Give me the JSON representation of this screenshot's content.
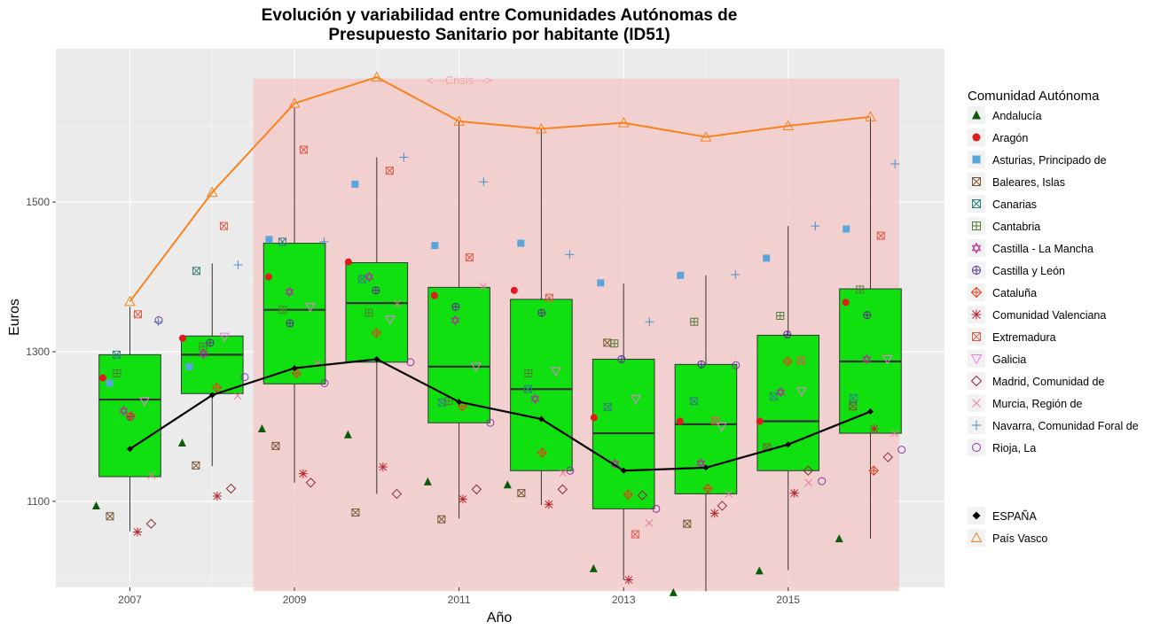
{
  "chart_data": {
    "type": "boxplot",
    "title_line1": "Evolución y variabilidad entre Comunidades Autónomas de",
    "title_line2": "Presupuesto Sanitario por habitante (ID51)",
    "xlabel": "Año",
    "ylabel": "Euros",
    "xlim": [
      2006.1,
      2016.9
    ],
    "ylim": [
      985,
      1705
    ],
    "x_ticks": [
      2007,
      2009,
      2011,
      2013,
      2015
    ],
    "x_tick_labels": [
      "2007",
      "2009",
      "2011",
      "2013",
      "2015"
    ],
    "y_ticks": [
      1100,
      1300,
      1500
    ],
    "y_tick_labels": [
      "1100",
      "1300",
      "1500"
    ],
    "crisis": {
      "label": "<---Crisis--->",
      "x_range": [
        2008.5,
        2016.35
      ],
      "y_range": [
        980,
        1665
      ],
      "color": "#f4c7c7"
    },
    "years": [
      2007,
      2008,
      2009,
      2010,
      2011,
      2012,
      2013,
      2014,
      2015,
      2016
    ],
    "boxes": [
      {
        "year": 2007,
        "q1": 1133,
        "median": 1236,
        "q3": 1296,
        "low": 1060,
        "high": 1360
      },
      {
        "year": 2008,
        "q1": 1244,
        "median": 1296,
        "q3": 1321,
        "low": 1147,
        "high": 1418
      },
      {
        "year": 2009,
        "q1": 1257,
        "median": 1356,
        "q3": 1445,
        "low": 1125,
        "high": 1627
      },
      {
        "year": 2010,
        "q1": 1286,
        "median": 1365,
        "q3": 1419,
        "low": 1110,
        "high": 1560
      },
      {
        "year": 2011,
        "q1": 1205,
        "median": 1280,
        "q3": 1386,
        "low": 1077,
        "high": 1608
      },
      {
        "year": 2012,
        "q1": 1141,
        "median": 1250,
        "q3": 1370,
        "low": 1095,
        "high": 1597
      },
      {
        "year": 2013,
        "q1": 1090,
        "median": 1191,
        "q3": 1290,
        "low": 995,
        "high": 1391
      },
      {
        "year": 2014,
        "q1": 1110,
        "median": 1203,
        "q3": 1283,
        "low": 980,
        "high": 1402
      },
      {
        "year": 2015,
        "q1": 1141,
        "median": 1207,
        "q3": 1322,
        "low": 1008,
        "high": 1468
      },
      {
        "year": 2016,
        "q1": 1191,
        "median": 1287,
        "q3": 1384,
        "low": 1050,
        "high": 1612
      }
    ],
    "espana": {
      "name": "ESPAÑA",
      "color": "#000000",
      "values": [
        1170,
        1242,
        1278,
        1290,
        1233,
        1210,
        1141,
        1145,
        1176,
        1220
      ]
    },
    "pais_vasco": {
      "name": "País Vasco",
      "color": "#f8821d",
      "values": [
        1367,
        1513,
        1632,
        1667,
        1608,
        1598,
        1606,
        1587,
        1602,
        1614
      ]
    },
    "box_fill": "#10e010",
    "legend": {
      "title": "Comunidad Autónoma",
      "items": [
        {
          "name": "Andalucía",
          "shape": "triangle-filled",
          "color": "#0a5c0a"
        },
        {
          "name": "Aragón",
          "shape": "circle-filled",
          "color": "#e01b1b"
        },
        {
          "name": "Asturias, Principado de",
          "shape": "square-filled",
          "color": "#5aa5dc"
        },
        {
          "name": "Baleares, Islas",
          "shape": "square-x",
          "color": "#7a5532"
        },
        {
          "name": "Canarias",
          "shape": "square-x",
          "color": "#2f7f7f"
        },
        {
          "name": "Cantabria",
          "shape": "square-plus",
          "color": "#4f7a35"
        },
        {
          "name": "Castilla - La Mancha",
          "shape": "star-david",
          "color": "#b0309a"
        },
        {
          "name": "Castilla y León",
          "shape": "circle-plus",
          "color": "#5a2c8c"
        },
        {
          "name": "Cataluña",
          "shape": "diamond-plus",
          "color": "#e83a1c"
        },
        {
          "name": "Comunidad Valenciana",
          "shape": "asterisk",
          "color": "#b5252e"
        },
        {
          "name": "Extremadura",
          "shape": "square-x",
          "color": "#e05a48"
        },
        {
          "name": "Galicia",
          "shape": "triangle-down",
          "color": "#f27ae6"
        },
        {
          "name": "Madrid, Comunidad de",
          "shape": "diamond",
          "color": "#8a2a3a"
        },
        {
          "name": "Murcia, Región de",
          "shape": "x",
          "color": "#f0789a"
        },
        {
          "name": "Navarra, Comunidad Foral de",
          "shape": "plus",
          "color": "#4b8ec9"
        },
        {
          "name": "Rioja, La",
          "shape": "circle",
          "color": "#8a35a8"
        }
      ],
      "extra_items": [
        {
          "name": "ESPAÑA",
          "shape": "diamond-filled",
          "color": "#000000"
        },
        {
          "name": "País Vasco",
          "shape": "triangle",
          "color": "#f8821d"
        }
      ]
    },
    "points": [
      {
        "region": "Andalucía",
        "values": [
          1094,
          1178,
          1197,
          1189,
          1126,
          1122,
          1010,
          978,
          1007,
          1050
        ]
      },
      {
        "region": "Aragón",
        "values": [
          1265,
          1318,
          1400,
          1420,
          1375,
          1382,
          1212,
          1207,
          1207,
          1366
        ]
      },
      {
        "region": "Asturias, Principado de",
        "values": [
          1258,
          1280,
          1450,
          1524,
          1442,
          1445,
          1392,
          1402,
          1425,
          1464
        ]
      },
      {
        "region": "Baleares, Islas",
        "values": [
          1080,
          1148,
          1174,
          1085,
          1076,
          1111,
          1312,
          1070,
          1172,
          1227
        ]
      },
      {
        "region": "Canarias",
        "values": [
          1296,
          1408,
          1447,
          1397,
          1232,
          1250,
          1226,
          1234,
          1240,
          1238
        ]
      },
      {
        "region": "Cantabria",
        "values": [
          1271,
          1307,
          1356,
          1352,
          1234,
          1271,
          1311,
          1340,
          1348,
          1383
        ]
      },
      {
        "region": "Castilla - La Mancha",
        "values": [
          1221,
          1297,
          1380,
          1400,
          1342,
          1237,
          1150,
          1151,
          1246,
          1290
        ]
      },
      {
        "region": "Castilla y León",
        "values": [
          1213,
          1312,
          1338,
          1382,
          1360,
          1352,
          1290,
          1283,
          1323,
          1349
        ]
      },
      {
        "region": "Cataluña",
        "values": [
          1214,
          1252,
          1271,
          1325,
          1227,
          1165,
          1109,
          1117,
          1287,
          1141
        ]
      },
      {
        "region": "Comunidad Valenciana",
        "values": [
          1059,
          1107,
          1137,
          1146,
          1103,
          1096,
          995,
          1084,
          1111,
          1197
        ]
      },
      {
        "region": "Extremadura",
        "values": [
          1350,
          1468,
          1570,
          1542,
          1426,
          1372,
          1056,
          1208,
          1288,
          1455
        ]
      },
      {
        "region": "Galicia",
        "values": [
          1234,
          1320,
          1360,
          1343,
          1280,
          1274,
          1237,
          1200,
          1247,
          1290
        ]
      },
      {
        "region": "Madrid, Comunidad de",
        "values": [
          1070,
          1117,
          1125,
          1110,
          1116,
          1116,
          1108,
          1094,
          1141,
          1159
        ]
      },
      {
        "region": "Murcia, Región de",
        "values": [
          1135,
          1241,
          1284,
          1364,
          1387,
          1138,
          1071,
          1110,
          1125,
          1191
        ]
      },
      {
        "region": "Navarra, Comunidad Foral de",
        "values": [
          1340,
          1416,
          1447,
          1560,
          1527,
          1430,
          1340,
          1403,
          1468,
          1551
        ]
      },
      {
        "region": "Rioja, La",
        "values": [
          1342,
          1266,
          1258,
          1286,
          1205,
          1141,
          1090,
          1282,
          1127,
          1169
        ]
      }
    ]
  }
}
